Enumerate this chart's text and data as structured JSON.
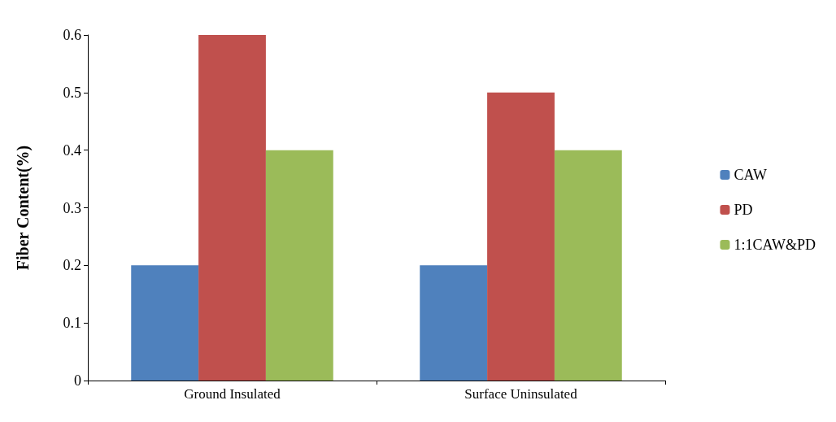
{
  "chart_data": {
    "type": "bar",
    "ylabel": "Fiber Content(%)",
    "categories": [
      "Ground Insulated",
      "Surface Uninsulated"
    ],
    "series": [
      {
        "name": "CAW",
        "color": "#4f81bd",
        "values": [
          0.2,
          0.2
        ]
      },
      {
        "name": "PD",
        "color": "#c0504d",
        "values": [
          0.6,
          0.5
        ]
      },
      {
        "name": "1:1CAW&PD",
        "color": "#9bbb59",
        "values": [
          0.4,
          0.4
        ]
      }
    ],
    "ylim": [
      0,
      0.6
    ],
    "yticks": [
      0,
      0.1,
      0.2,
      0.3,
      0.4,
      0.5,
      0.6
    ],
    "grid": false,
    "legend": "right"
  }
}
